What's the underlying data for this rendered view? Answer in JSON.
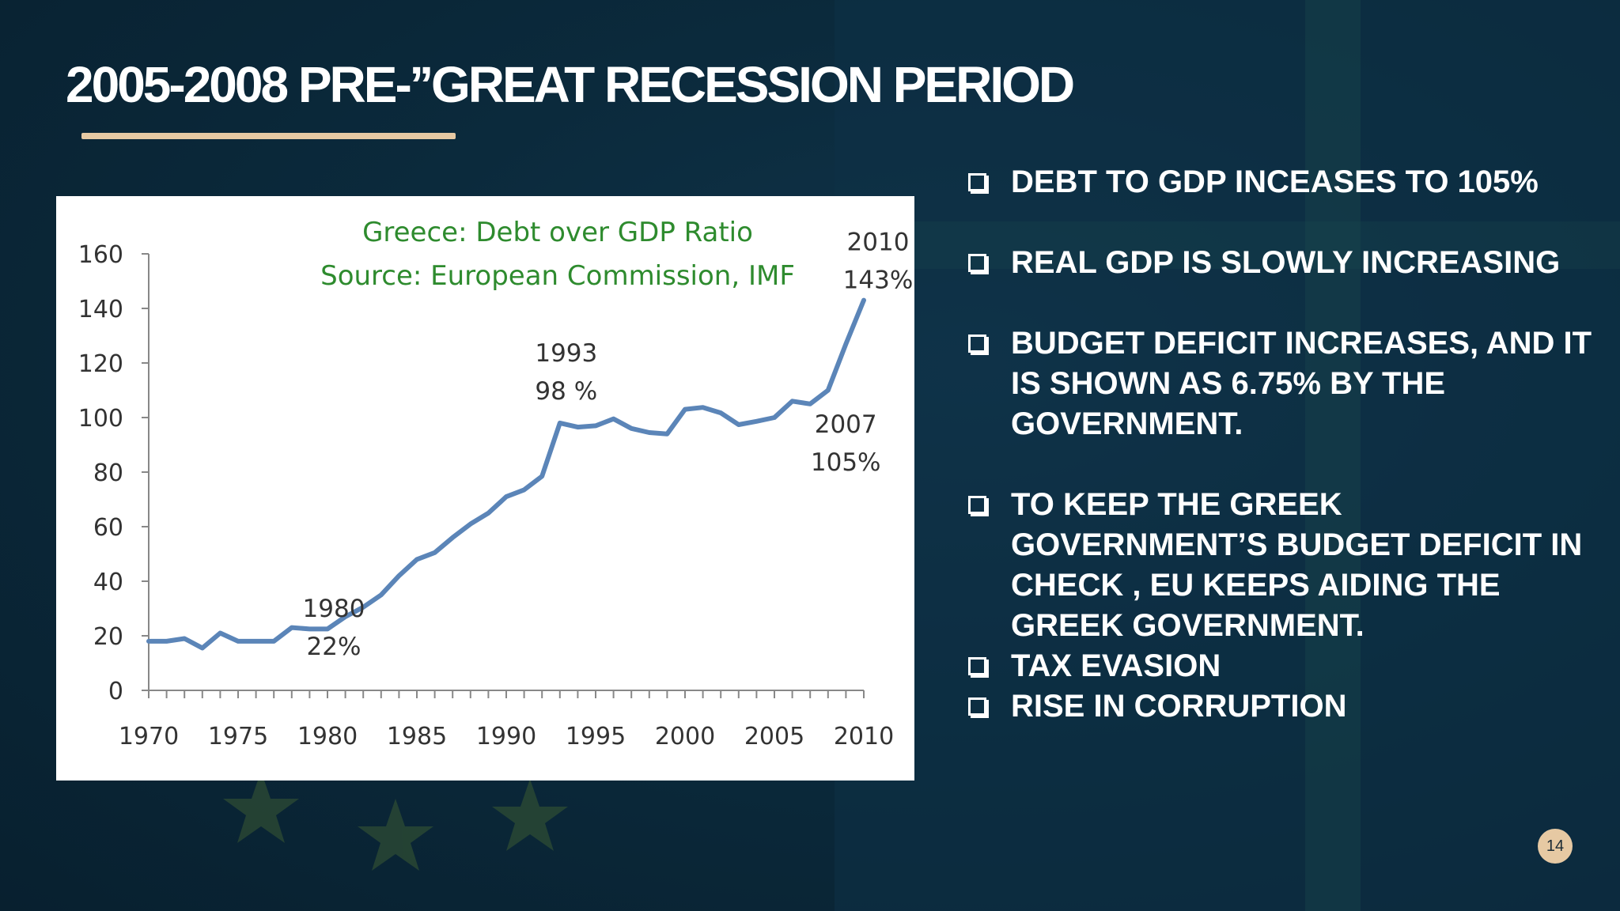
{
  "slide": {
    "title": "2005-2008  PRE-’’GREAT RECESSION PERIOD",
    "page_number": "14",
    "accent_color": "#e6c9a3",
    "background_color": "#0b2a3c"
  },
  "bullets": [
    {
      "text": "DEBT TO GDP INCEASES TO 105%",
      "icon": "checkbox-outline-icon"
    },
    {
      "text": "REAL GDP IS SLOWLY INCREASING",
      "icon": "checkbox-outline-icon"
    },
    {
      "text": "BUDGET DEFICIT INCREASES, AND IT IS SHOWN AS 6.75% BY THE GOVERNMENT.",
      "icon": "checkbox-outline-icon"
    },
    {
      "text": "TO KEEP THE GREEK GOVERNMENT’S BUDGET DEFICIT IN CHECK , EU KEEPS AIDING THE GREEK GOVERNMENT.",
      "icon": "checkbox-outline-icon"
    },
    {
      "text": "TAX EVASION",
      "icon": "checkbox-outline-icon"
    },
    {
      "text": "RISE IN CORRUPTION",
      "icon": "checkbox-outline-icon"
    }
  ],
  "chart_data": {
    "type": "line",
    "title": "Greece: Debt over GDP Ratio",
    "subtitle": "Source: European Commission, IMF",
    "title_color": "#2e8b2e",
    "line_color": "#5b85b8",
    "xlim": [
      1970,
      2010
    ],
    "ylim": [
      0,
      160
    ],
    "xticks": [
      1970,
      1975,
      1980,
      1985,
      1990,
      1995,
      2000,
      2005,
      2010
    ],
    "yticks": [
      0,
      20,
      40,
      60,
      80,
      100,
      120,
      140,
      160
    ],
    "grid": false,
    "series": [
      {
        "x": [
          1970,
          1971,
          1972,
          1973,
          1974,
          1975,
          1976,
          1977,
          1978,
          1979,
          1980,
          1981,
          1982,
          1983,
          1984,
          1985,
          1986,
          1987,
          1988,
          1989,
          1990,
          1991,
          1992,
          1993,
          1994,
          1995,
          1996,
          1997,
          1998,
          1999,
          2000,
          2001,
          2002,
          2003,
          2004,
          2005,
          2006,
          2007,
          2008,
          2009,
          2010
        ],
        "y": [
          18,
          18,
          19,
          15.5,
          21,
          18,
          18,
          18,
          23,
          22.5,
          22.5,
          27,
          30.5,
          35,
          42,
          48,
          50.5,
          56,
          61,
          65,
          71,
          73.5,
          78.5,
          98,
          96.5,
          97,
          99.5,
          96,
          94.5,
          94,
          103,
          103.7,
          101.7,
          97.4,
          98.6,
          100,
          106,
          105,
          110,
          127,
          143
        ]
      }
    ],
    "annotations": [
      {
        "year": "1980",
        "value": "22%",
        "x": 1980,
        "y": 22
      },
      {
        "year": "1993",
        "value": "98 %",
        "x": 1993,
        "y": 98
      },
      {
        "year": "2007",
        "value": "105%",
        "x": 2007,
        "y": 105
      },
      {
        "year": "2010",
        "value": "143%",
        "x": 2010,
        "y": 143
      }
    ]
  }
}
